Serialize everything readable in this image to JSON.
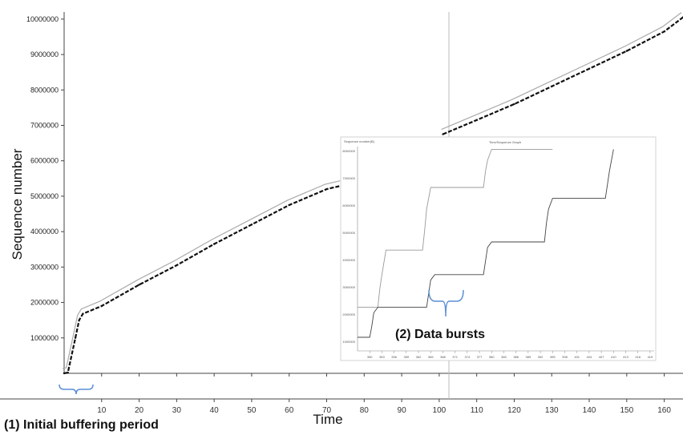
{
  "chart_data": [
    {
      "type": "line",
      "title": "",
      "xlabel": "Time",
      "ylabel": "Sequence number",
      "xlim": [
        0,
        165
      ],
      "ylim": [
        0,
        10200000
      ],
      "x_ticks": [
        "10",
        "20",
        "30",
        "40",
        "50",
        "60",
        "70",
        "80",
        "90",
        "100",
        "110",
        "120",
        "130",
        "140",
        "150",
        "160"
      ],
      "y_ticks": [
        "1000000",
        "2000000",
        "3000000",
        "4000000",
        "5000000",
        "6000000",
        "7000000",
        "8000000",
        "9000000",
        "10000000"
      ],
      "grid": false,
      "series": [
        {
          "x": [
            0,
            1,
            3,
            4,
            5,
            10,
            20,
            30,
            40,
            50,
            60,
            70,
            74
          ],
          "values": [
            0,
            20000,
            1000000,
            1500000,
            1680000,
            1900000,
            2500000,
            3050000,
            3650000,
            4200000,
            4750000,
            5200000,
            5300000
          ]
        },
        {
          "x": [
            101,
            110,
            120,
            130,
            140,
            150,
            160,
            165
          ],
          "values": [
            6750000,
            7150000,
            7600000,
            8100000,
            8600000,
            9100000,
            9650000,
            10050000
          ]
        }
      ],
      "annotations": [
        "(1) Initial buffering period"
      ]
    },
    {
      "type": "line",
      "title": "Time/Sequence Graph",
      "ylabel": "Sequence number(B)",
      "xlim": [
        347,
        420
      ],
      "ylim": [
        1000,
        8500
      ],
      "x_ticks": [
        "350",
        "353",
        "356",
        "359",
        "362",
        "365",
        "368",
        "371",
        "374",
        "377",
        "380",
        "383",
        "386",
        "389",
        "392",
        "395",
        "398",
        "401",
        "404",
        "407",
        "410",
        "413",
        "416",
        "419"
      ],
      "y_ticks": [
        "1000000",
        "2000000",
        "3000000",
        "4000000",
        "5000000",
        "6000000",
        "7000000",
        "8000000"
      ],
      "series": [
        {
          "x": [
            347,
            352,
            352.5,
            353,
            354,
            363,
            363.5,
            364,
            365,
            378,
            378.5,
            379,
            380,
            393,
            393.5,
            394,
            395
          ],
          "values": [
            2600,
            2600,
            3300,
            3800,
            4700,
            4700,
            5400,
            6200,
            7000,
            7000,
            7600,
            8000,
            8400,
            8400,
            8400,
            8400,
            8400
          ]
        },
        {
          "x": [
            347,
            350,
            350.5,
            351,
            352,
            364,
            364.5,
            365,
            366,
            378,
            378.5,
            379,
            380,
            393,
            393.5,
            394,
            395,
            408,
            408.5,
            409,
            410
          ],
          "values": [
            1500,
            1500,
            1900,
            2400,
            2600,
            2600,
            3100,
            3600,
            3800,
            3800,
            4300,
            4800,
            5000,
            5000,
            5700,
            6200,
            6600,
            6600,
            7100,
            7600,
            8400
          ]
        }
      ],
      "annotations": [
        "(2) Data bursts"
      ]
    }
  ]
}
